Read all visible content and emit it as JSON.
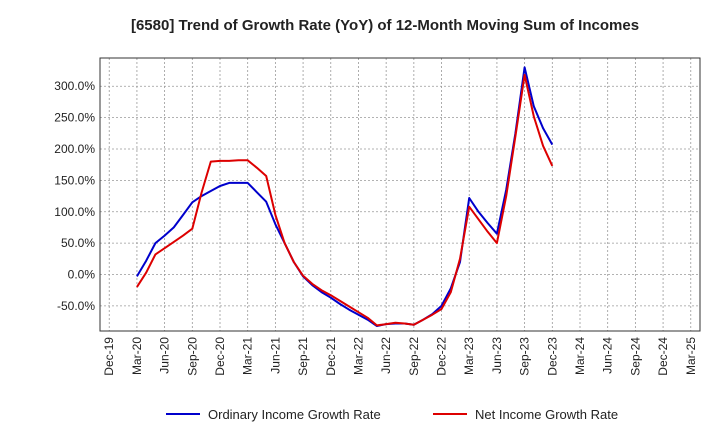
{
  "chart_data": {
    "type": "line",
    "title": "[6580]  Trend of Growth Rate (YoY) of 12-Month Moving Sum of Incomes",
    "xlabel": "",
    "ylabel": "",
    "ylim": [
      -90,
      345
    ],
    "y_ticks": [
      -50,
      0,
      50,
      100,
      150,
      200,
      250,
      300
    ],
    "y_tick_labels": [
      "-50.0%",
      "0.0%",
      "50.0%",
      "100.0%",
      "150.0%",
      "200.0%",
      "250.0%",
      "300.0%"
    ],
    "x_ticks": [
      "Dec-19",
      "Mar-20",
      "Jun-20",
      "Sep-20",
      "Dec-20",
      "Mar-21",
      "Jun-21",
      "Sep-21",
      "Dec-21",
      "Mar-22",
      "Jun-22",
      "Sep-22",
      "Dec-22",
      "Mar-23",
      "Jun-23",
      "Sep-23",
      "Dec-23",
      "Mar-24",
      "Jun-24",
      "Sep-24",
      "Dec-24",
      "Mar-25"
    ],
    "grid": true,
    "legend_position": "bottom",
    "series": [
      {
        "name": "Ordinary Income Growth Rate",
        "color": "#0000cc",
        "points": [
          [
            3,
            -3
          ],
          [
            4,
            22
          ],
          [
            5,
            50
          ],
          [
            6,
            62
          ],
          [
            7,
            75
          ],
          [
            8,
            95
          ],
          [
            9,
            115
          ],
          [
            10,
            125
          ],
          [
            11,
            133
          ],
          [
            12,
            141
          ],
          [
            13,
            146
          ],
          [
            14,
            146
          ],
          [
            15,
            146
          ],
          [
            16,
            131
          ],
          [
            17,
            116
          ],
          [
            18,
            80
          ],
          [
            19,
            50
          ],
          [
            20,
            20
          ],
          [
            21,
            -3
          ],
          [
            22,
            -17
          ],
          [
            23,
            -28
          ],
          [
            24,
            -37
          ],
          [
            25,
            -47
          ],
          [
            26,
            -56
          ],
          [
            27,
            -64
          ],
          [
            28,
            -72
          ],
          [
            29,
            -82
          ],
          [
            30,
            -79
          ],
          [
            31,
            -78
          ],
          [
            32,
            -78
          ],
          [
            33,
            -80
          ],
          [
            34,
            -72
          ],
          [
            35,
            -63
          ],
          [
            36,
            -50
          ],
          [
            37,
            -22
          ],
          [
            38,
            20
          ],
          [
            39,
            122
          ],
          [
            40,
            100
          ],
          [
            41,
            82
          ],
          [
            42,
            65
          ],
          [
            43,
            135
          ],
          [
            44,
            225
          ],
          [
            45,
            330
          ],
          [
            46,
            268
          ],
          [
            47,
            233
          ],
          [
            48,
            207
          ]
        ]
      },
      {
        "name": "Net Income Growth Rate",
        "color": "#dd0000",
        "points": [
          [
            3,
            -20
          ],
          [
            4,
            3
          ],
          [
            5,
            32
          ],
          [
            6,
            42
          ],
          [
            7,
            52
          ],
          [
            8,
            62
          ],
          [
            9,
            73
          ],
          [
            10,
            130
          ],
          [
            11,
            180
          ],
          [
            12,
            181
          ],
          [
            13,
            181
          ],
          [
            14,
            182
          ],
          [
            15,
            182
          ],
          [
            16,
            170
          ],
          [
            17,
            157
          ],
          [
            18,
            95
          ],
          [
            19,
            50
          ],
          [
            20,
            20
          ],
          [
            21,
            -2
          ],
          [
            22,
            -15
          ],
          [
            23,
            -25
          ],
          [
            24,
            -33
          ],
          [
            25,
            -42
          ],
          [
            26,
            -51
          ],
          [
            27,
            -60
          ],
          [
            28,
            -69
          ],
          [
            29,
            -81
          ],
          [
            30,
            -79
          ],
          [
            31,
            -77
          ],
          [
            32,
            -78
          ],
          [
            33,
            -80
          ],
          [
            34,
            -72
          ],
          [
            35,
            -64
          ],
          [
            36,
            -55
          ],
          [
            37,
            -28
          ],
          [
            38,
            25
          ],
          [
            39,
            108
          ],
          [
            40,
            88
          ],
          [
            41,
            68
          ],
          [
            42,
            50
          ],
          [
            43,
            125
          ],
          [
            44,
            220
          ],
          [
            45,
            318
          ],
          [
            46,
            252
          ],
          [
            47,
            205
          ],
          [
            48,
            173
          ]
        ]
      }
    ]
  }
}
